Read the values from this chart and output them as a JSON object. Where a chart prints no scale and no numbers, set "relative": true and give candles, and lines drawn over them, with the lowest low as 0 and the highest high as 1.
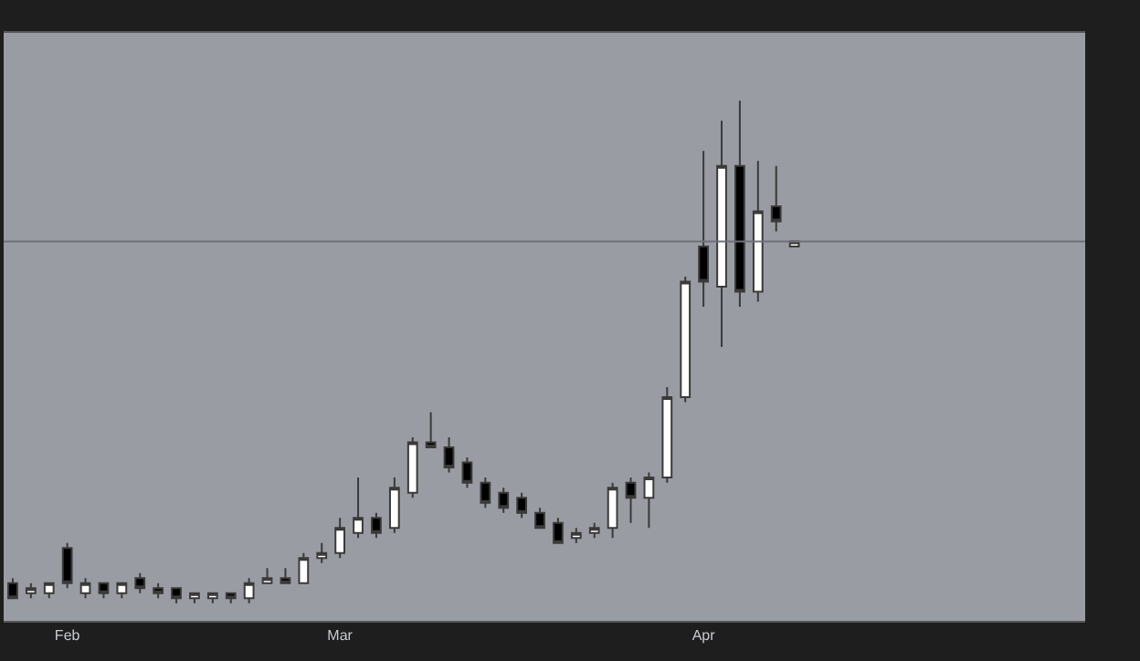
{
  "chart_data": {
    "type": "candlestick",
    "relative": true,
    "categories": [
      null,
      null,
      null,
      "Feb",
      null,
      null,
      null,
      null,
      null,
      null,
      null,
      null,
      null,
      null,
      null,
      null,
      null,
      null,
      "Mar",
      null,
      null,
      null,
      null,
      null,
      null,
      null,
      null,
      null,
      null,
      null,
      null,
      null,
      null,
      null,
      null,
      null,
      null,
      null,
      "Apr",
      null,
      null,
      null,
      null,
      null
    ],
    "ohlc": [
      [
        0.04,
        0.05,
        0.01,
        0.01
      ],
      [
        0.02,
        0.04,
        0.01,
        0.03
      ],
      [
        0.02,
        0.04,
        0.01,
        0.04
      ],
      [
        0.11,
        0.12,
        0.03,
        0.04
      ],
      [
        0.02,
        0.05,
        0.01,
        0.04
      ],
      [
        0.04,
        0.04,
        0.01,
        0.02
      ],
      [
        0.02,
        0.04,
        0.01,
        0.04
      ],
      [
        0.05,
        0.06,
        0.02,
        0.03
      ],
      [
        0.03,
        0.04,
        0.01,
        0.02
      ],
      [
        0.03,
        0.03,
        0,
        0.01
      ],
      [
        0.01,
        0.02,
        0,
        0.02
      ],
      [
        0.01,
        0.02,
        0,
        0.02
      ],
      [
        0.02,
        0.02,
        0,
        0.01
      ],
      [
        0.01,
        0.05,
        0,
        0.04
      ],
      [
        0.04,
        0.07,
        0.04,
        0.05
      ],
      [
        0.05,
        0.07,
        0.04,
        0.04
      ],
      [
        0.04,
        0.1,
        0.04,
        0.09
      ],
      [
        0.09,
        0.12,
        0.08,
        0.1
      ],
      [
        0.1,
        0.17,
        0.09,
        0.15
      ],
      [
        0.14,
        0.25,
        0.13,
        0.17
      ],
      [
        0.17,
        0.18,
        0.13,
        0.14
      ],
      [
        0.15,
        0.25,
        0.14,
        0.23
      ],
      [
        0.22,
        0.33,
        0.21,
        0.32
      ],
      [
        0.32,
        0.38,
        0.31,
        0.31
      ],
      [
        0.31,
        0.33,
        0.26,
        0.27
      ],
      [
        0.28,
        0.29,
        0.23,
        0.24
      ],
      [
        0.24,
        0.25,
        0.19,
        0.2
      ],
      [
        0.22,
        0.23,
        0.18,
        0.19
      ],
      [
        0.21,
        0.22,
        0.17,
        0.18
      ],
      [
        0.18,
        0.19,
        0.15,
        0.15
      ],
      [
        0.16,
        0.17,
        0.12,
        0.12
      ],
      [
        0.13,
        0.15,
        0.12,
        0.14
      ],
      [
        0.14,
        0.16,
        0.13,
        0.15
      ],
      [
        0.15,
        0.24,
        0.13,
        0.23
      ],
      [
        0.24,
        0.25,
        0.16,
        0.21
      ],
      [
        0.21,
        0.26,
        0.15,
        0.25
      ],
      [
        0.25,
        0.43,
        0.24,
        0.41
      ],
      [
        0.41,
        0.65,
        0.4,
        0.64
      ],
      [
        0.71,
        0.9,
        0.59,
        0.64
      ],
      [
        0.63,
        0.96,
        0.51,
        0.87
      ],
      [
        0.87,
        1,
        0.59,
        0.62
      ],
      [
        0.62,
        0.88,
        0.6,
        0.78
      ],
      [
        0.79,
        0.87,
        0.74,
        0.76
      ],
      [
        0.71,
        0.72,
        0.71,
        0.72
      ]
    ],
    "ref_lines": [
      {
        "axis": "y",
        "value": 0.72,
        "color": "#6e7178"
      }
    ],
    "grid": false,
    "legend": false
  }
}
